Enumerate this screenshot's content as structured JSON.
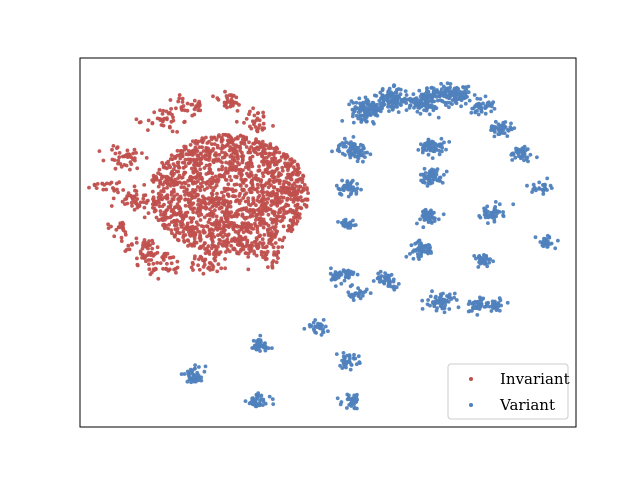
{
  "chart_data": {
    "type": "scatter",
    "title": "",
    "xlabel": "",
    "ylabel": "",
    "axis_ticks": "none",
    "grid": false,
    "legend_position": "bottom-right",
    "xlim": [
      0,
      100
    ],
    "ylim": [
      0,
      100
    ],
    "series": [
      {
        "name": "Invariant",
        "color": "#c0504d",
        "shape": "filled circular cluster with sub-blobs",
        "clusters": [
          {
            "cx": 30,
            "cy": 63,
            "spread": 16,
            "n": 1600
          },
          {
            "cx": 9,
            "cy": 73,
            "spread": 2,
            "n": 40
          },
          {
            "cx": 11,
            "cy": 62,
            "spread": 2.2,
            "n": 50
          },
          {
            "cx": 5,
            "cy": 66,
            "spread": 1.3,
            "n": 18
          },
          {
            "cx": 13,
            "cy": 48,
            "spread": 2,
            "n": 45
          },
          {
            "cx": 17,
            "cy": 83,
            "spread": 1.8,
            "n": 35
          },
          {
            "cx": 22,
            "cy": 87,
            "spread": 1.6,
            "n": 30
          },
          {
            "cx": 30,
            "cy": 88,
            "spread": 1.6,
            "n": 30
          },
          {
            "cx": 36,
            "cy": 83,
            "spread": 1.8,
            "n": 30
          },
          {
            "cx": 17,
            "cy": 44,
            "spread": 2,
            "n": 40
          },
          {
            "cx": 26,
            "cy": 45,
            "spread": 2,
            "n": 40
          },
          {
            "cx": 38,
            "cy": 47,
            "spread": 2,
            "n": 35
          },
          {
            "cx": 8,
            "cy": 54,
            "spread": 1.3,
            "n": 18
          }
        ]
      },
      {
        "name": "Variant",
        "color": "#4f81bd",
        "shape": "curved strands and small clusters",
        "clusters": [
          {
            "cx": 58,
            "cy": 86,
            "spread": 1.6,
            "n": 120
          },
          {
            "cx": 63,
            "cy": 89,
            "spread": 1.6,
            "n": 110
          },
          {
            "cx": 69,
            "cy": 88,
            "spread": 1.6,
            "n": 90
          },
          {
            "cx": 72,
            "cy": 90,
            "spread": 1.4,
            "n": 60
          },
          {
            "cx": 76,
            "cy": 90,
            "spread": 1.4,
            "n": 80
          },
          {
            "cx": 81,
            "cy": 87,
            "spread": 1.2,
            "n": 40
          },
          {
            "cx": 55,
            "cy": 75,
            "spread": 1.4,
            "n": 80
          },
          {
            "cx": 54,
            "cy": 65,
            "spread": 1.2,
            "n": 40
          },
          {
            "cx": 54,
            "cy": 55,
            "spread": 1,
            "n": 25
          },
          {
            "cx": 53,
            "cy": 41,
            "spread": 1.2,
            "n": 50
          },
          {
            "cx": 56,
            "cy": 36,
            "spread": 1,
            "n": 25
          },
          {
            "cx": 71,
            "cy": 76,
            "spread": 1.2,
            "n": 60
          },
          {
            "cx": 71,
            "cy": 68,
            "spread": 1.2,
            "n": 60
          },
          {
            "cx": 70,
            "cy": 57,
            "spread": 1.2,
            "n": 50
          },
          {
            "cx": 69,
            "cy": 48,
            "spread": 1.2,
            "n": 50
          },
          {
            "cx": 62,
            "cy": 40,
            "spread": 1.2,
            "n": 40
          },
          {
            "cx": 85,
            "cy": 81,
            "spread": 1.2,
            "n": 45
          },
          {
            "cx": 89,
            "cy": 74,
            "spread": 1.2,
            "n": 45
          },
          {
            "cx": 93,
            "cy": 65,
            "spread": 0.9,
            "n": 25
          },
          {
            "cx": 83,
            "cy": 58,
            "spread": 1.2,
            "n": 45
          },
          {
            "cx": 81,
            "cy": 45,
            "spread": 1,
            "n": 40
          },
          {
            "cx": 94,
            "cy": 50,
            "spread": 1,
            "n": 30
          },
          {
            "cx": 73,
            "cy": 34,
            "spread": 1.3,
            "n": 60
          },
          {
            "cx": 80,
            "cy": 33,
            "spread": 1.2,
            "n": 40
          },
          {
            "cx": 84,
            "cy": 33,
            "spread": 1,
            "n": 25
          },
          {
            "cx": 48,
            "cy": 27,
            "spread": 1.1,
            "n": 30
          },
          {
            "cx": 54,
            "cy": 18,
            "spread": 1.1,
            "n": 35
          },
          {
            "cx": 55,
            "cy": 7,
            "spread": 1.1,
            "n": 30
          },
          {
            "cx": 36,
            "cy": 22,
            "spread": 1.2,
            "n": 45
          },
          {
            "cx": 36,
            "cy": 7,
            "spread": 1.2,
            "n": 40
          },
          {
            "cx": 23,
            "cy": 14,
            "spread": 1.2,
            "n": 40
          }
        ]
      }
    ],
    "legend": {
      "entries": [
        "Invariant",
        "Variant"
      ]
    }
  }
}
